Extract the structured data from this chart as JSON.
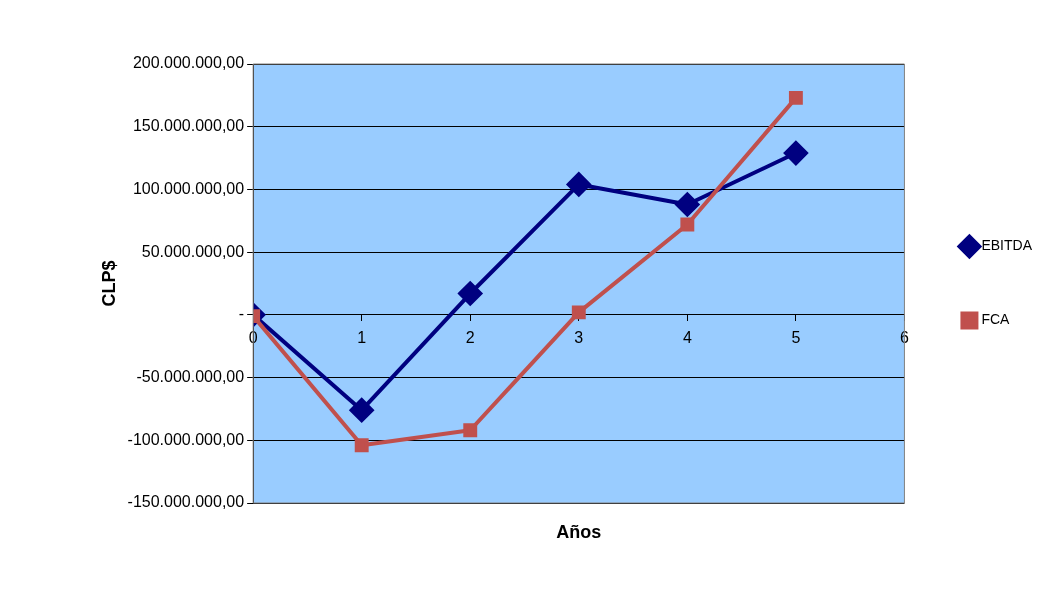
{
  "chart_data": {
    "type": "line",
    "xlabel": "Años",
    "ylabel": "CLP$",
    "x": [
      0,
      1,
      2,
      3,
      4,
      5
    ],
    "series": [
      {
        "name": "EBITDA",
        "color": "#000080",
        "marker": "diamond",
        "values": [
          0,
          -76000000,
          17000000,
          104000000,
          88000000,
          129000000
        ]
      },
      {
        "name": "FCA",
        "color": "#c0504d",
        "marker": "square",
        "values": [
          -1000000,
          -104000000,
          -92000000,
          2000000,
          72000000,
          173000000
        ]
      }
    ],
    "xlim": [
      0,
      6
    ],
    "xticks": [
      0,
      1,
      2,
      3,
      4,
      5,
      6
    ],
    "ylim": [
      -150000000,
      200000000
    ],
    "yticks": [
      {
        "value": -150000000,
        "label": "-150.000.000,00"
      },
      {
        "value": -100000000,
        "label": "-100.000.000,00"
      },
      {
        "value": -50000000,
        "label": "-50.000.000,00"
      },
      {
        "value": 0,
        "label": "-"
      },
      {
        "value": 50000000,
        "label": "50.000.000,00"
      },
      {
        "value": 100000000,
        "label": "100.000.000,00"
      },
      {
        "value": 150000000,
        "label": "150.000.000,00"
      },
      {
        "value": 200000000,
        "label": "200.000.000,00"
      }
    ],
    "grid": "y",
    "legend": "right"
  }
}
